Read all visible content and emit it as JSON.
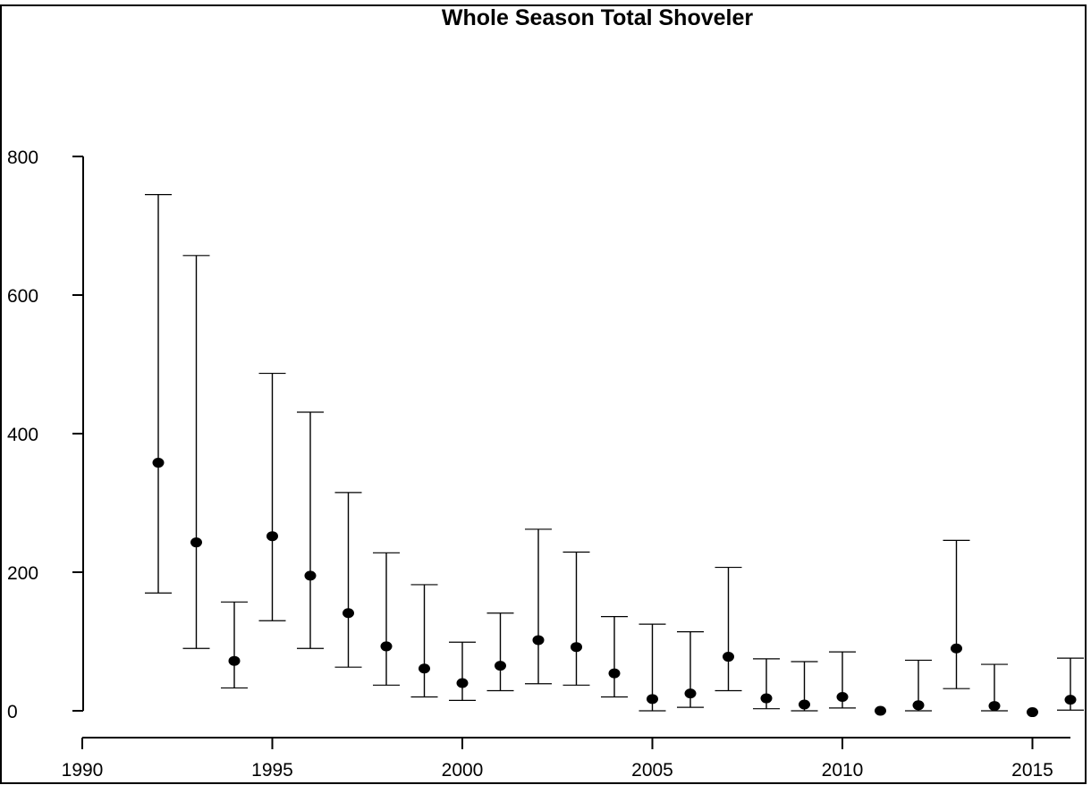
{
  "chart_data": {
    "type": "scatter",
    "title": "Whole Season Total Shoveler",
    "xlabel": "",
    "ylabel": "",
    "xlim": [
      1990,
      2016
    ],
    "ylim": [
      0,
      800
    ],
    "x_ticks": [
      1990,
      1995,
      2000,
      2005,
      2010,
      2015
    ],
    "y_ticks": [
      0,
      200,
      400,
      600,
      800
    ],
    "grid": false,
    "legend": "none",
    "error_bars": true,
    "colors": {
      "marks": "#000000",
      "background": "#ffffff"
    },
    "points": [
      {
        "x": 1992,
        "y": 358,
        "lower": 170,
        "upper": 745
      },
      {
        "x": 1993,
        "y": 243,
        "lower": 90,
        "upper": 657
      },
      {
        "x": 1994,
        "y": 72,
        "lower": 33,
        "upper": 157
      },
      {
        "x": 1995,
        "y": 252,
        "lower": 130,
        "upper": 487
      },
      {
        "x": 1996,
        "y": 195,
        "lower": 90,
        "upper": 431
      },
      {
        "x": 1997,
        "y": 141,
        "lower": 63,
        "upper": 315
      },
      {
        "x": 1998,
        "y": 93,
        "lower": 37,
        "upper": 228
      },
      {
        "x": 1999,
        "y": 61,
        "lower": 20,
        "upper": 182
      },
      {
        "x": 2000,
        "y": 40,
        "lower": 15,
        "upper": 99
      },
      {
        "x": 2001,
        "y": 65,
        "lower": 29,
        "upper": 141
      },
      {
        "x": 2002,
        "y": 102,
        "lower": 39,
        "upper": 262
      },
      {
        "x": 2003,
        "y": 92,
        "lower": 37,
        "upper": 229
      },
      {
        "x": 2004,
        "y": 54,
        "lower": 20,
        "upper": 136
      },
      {
        "x": 2005,
        "y": 17,
        "lower": 0,
        "upper": 125
      },
      {
        "x": 2006,
        "y": 25,
        "lower": 5,
        "upper": 114
      },
      {
        "x": 2007,
        "y": 78,
        "lower": 29,
        "upper": 207
      },
      {
        "x": 2008,
        "y": 18,
        "lower": 3,
        "upper": 75
      },
      {
        "x": 2009,
        "y": 9,
        "lower": 0,
        "upper": 71
      },
      {
        "x": 2010,
        "y": 20,
        "lower": 4,
        "upper": 85
      },
      {
        "x": 2011,
        "y": 0,
        "lower": 0,
        "upper": 0
      },
      {
        "x": 2012,
        "y": 8,
        "lower": 0,
        "upper": 73
      },
      {
        "x": 2013,
        "y": 90,
        "lower": 32,
        "upper": 246
      },
      {
        "x": 2014,
        "y": 7,
        "lower": 0,
        "upper": 67
      },
      {
        "x": 2015,
        "y": -2,
        "lower": -2,
        "upper": -2
      },
      {
        "x": 2016,
        "y": 16,
        "lower": 1,
        "upper": 76
      }
    ]
  }
}
